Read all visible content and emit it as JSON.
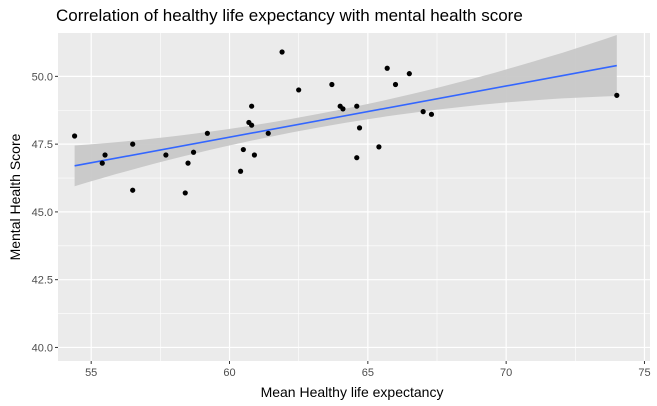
{
  "chart_data": {
    "type": "scatter",
    "title": "Correlation of healthy life expectancy with mental health score",
    "xlabel": "Mean Healthy life expectancy",
    "ylabel": "Mental Health Score",
    "xlim": [
      53.8,
      75.2
    ],
    "ylim": [
      39.5,
      51.6
    ],
    "x_ticks": [
      55,
      60,
      65,
      70,
      75
    ],
    "x_tick_labels": [
      "55",
      "60",
      "65",
      "70",
      "75"
    ],
    "y_ticks": [
      40.0,
      42.5,
      45.0,
      47.5,
      50.0
    ],
    "y_tick_labels": [
      "40.0",
      "42.5",
      "45.0",
      "47.5",
      "50.0"
    ],
    "grid": true,
    "legend": "none",
    "points": [
      {
        "x": 54.4,
        "y": 47.8
      },
      {
        "x": 55.4,
        "y": 46.8
      },
      {
        "x": 55.5,
        "y": 47.1
      },
      {
        "x": 56.5,
        "y": 47.5
      },
      {
        "x": 56.5,
        "y": 45.8
      },
      {
        "x": 57.7,
        "y": 47.1
      },
      {
        "x": 58.4,
        "y": 45.7
      },
      {
        "x": 58.5,
        "y": 46.8
      },
      {
        "x": 58.7,
        "y": 47.2
      },
      {
        "x": 59.2,
        "y": 47.9
      },
      {
        "x": 60.4,
        "y": 46.5
      },
      {
        "x": 60.5,
        "y": 47.3
      },
      {
        "x": 60.7,
        "y": 48.3
      },
      {
        "x": 60.8,
        "y": 48.2
      },
      {
        "x": 60.8,
        "y": 48.9
      },
      {
        "x": 60.9,
        "y": 47.1
      },
      {
        "x": 61.4,
        "y": 47.9
      },
      {
        "x": 61.9,
        "y": 50.9
      },
      {
        "x": 62.5,
        "y": 49.5
      },
      {
        "x": 63.7,
        "y": 49.7
      },
      {
        "x": 64.0,
        "y": 48.9
      },
      {
        "x": 64.1,
        "y": 48.8
      },
      {
        "x": 64.6,
        "y": 47.0
      },
      {
        "x": 64.6,
        "y": 48.9
      },
      {
        "x": 64.7,
        "y": 48.1
      },
      {
        "x": 65.4,
        "y": 47.4
      },
      {
        "x": 65.7,
        "y": 50.3
      },
      {
        "x": 66.0,
        "y": 49.7
      },
      {
        "x": 66.5,
        "y": 50.1
      },
      {
        "x": 67.0,
        "y": 48.7
      },
      {
        "x": 67.3,
        "y": 48.6
      },
      {
        "x": 74.0,
        "y": 49.3
      }
    ],
    "trend": {
      "method": "linear",
      "x_range": [
        54.4,
        74.0
      ],
      "y_start": 46.7,
      "y_end": 50.4,
      "ci_start": [
        45.95,
        47.45
      ],
      "ci_end": [
        49.25,
        51.5
      ],
      "ci_mid_x": 62.5,
      "ci_mid": [
        47.95,
        48.45
      ]
    },
    "colors": {
      "panel": "#EBEBEB",
      "grid": "#FFFFFF",
      "point": "#000000",
      "line": "#3366FF",
      "ribbon": "#C8C8C8",
      "axis_text": "#4D4D4D",
      "tick": "#333333"
    }
  }
}
